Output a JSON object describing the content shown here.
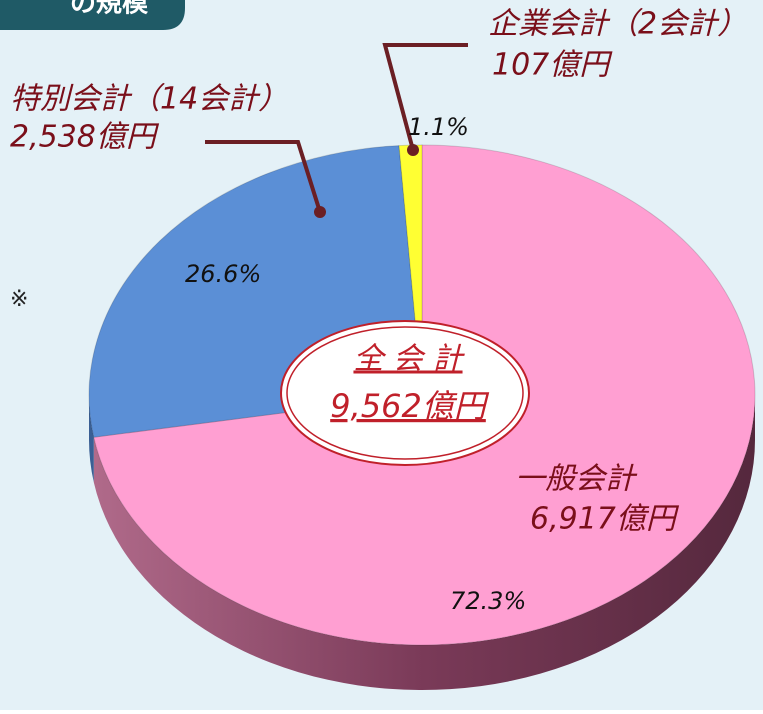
{
  "header": "の規模",
  "note": "※",
  "chart_data": {
    "type": "pie",
    "categories": [
      "一般会計",
      "特別会計（14会計）",
      "企業会計（2会計）"
    ],
    "values": [
      72.3,
      26.6,
      1.1
    ],
    "value_labels": [
      "72.3%",
      "26.6%",
      "1.1%"
    ],
    "amount_labels": [
      "6,917億円",
      "2,538億円",
      "107億円"
    ],
    "colors": [
      "#ff9fd2",
      "#5b8fd6",
      "#ffff33"
    ],
    "side_colors": [
      "#8a4a66",
      "#3a5f94",
      "#a0a020"
    ],
    "center_title": "全 会 計",
    "center_total": "9,562億円"
  }
}
